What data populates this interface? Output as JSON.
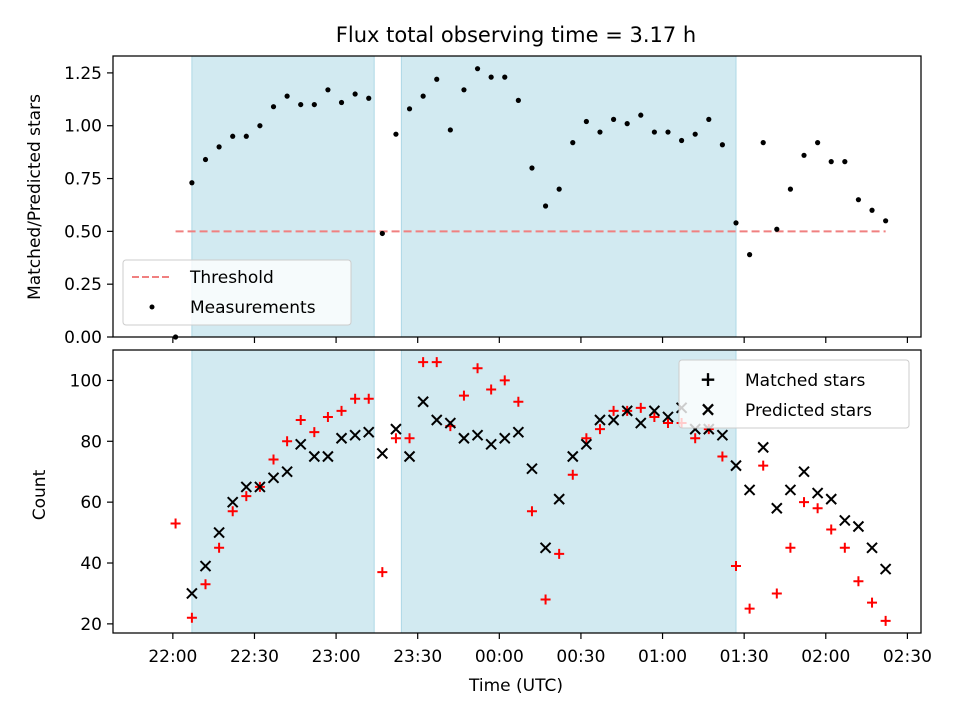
{
  "figure": {
    "title": "Flux total observing time = 3.17 h",
    "xlabel": "Time (UTC)",
    "xticks": [
      "22:00",
      "22:30",
      "23:00",
      "23:30",
      "00:00",
      "00:30",
      "01:00",
      "01:30",
      "02:00",
      "02:30"
    ]
  },
  "colors": {
    "threshold": "#f08080",
    "measurements": "#000000",
    "matched": "#ff0000",
    "predicted": "#000000",
    "shading": "#add8e6"
  },
  "chart_data": [
    {
      "type": "scatter",
      "title": "Flux total observing time = 3.17 h",
      "ylabel": "Matched/Predicted stars",
      "ylim": [
        0,
        1.33
      ],
      "yticks": [
        "0.00",
        "0.25",
        "0.50",
        "0.75",
        "1.00",
        "1.25"
      ],
      "xlim_minutes_since_2200": [
        -22,
        275
      ],
      "shaded_intervals": [
        [
          "22:07",
          "23:14"
        ],
        [
          "23:24",
          "01:27"
        ]
      ],
      "legend": {
        "placement": "lower-left",
        "entries": [
          "Threshold",
          "Measurements"
        ]
      },
      "series": [
        {
          "name": "Threshold",
          "style": "dashed-line",
          "x": [
            "22:01",
            "02:22"
          ],
          "y": [
            0.5,
            0.5
          ]
        },
        {
          "name": "Measurements",
          "style": "dots",
          "x": [
            "22:01",
            "22:07",
            "22:12",
            "22:17",
            "22:22",
            "22:27",
            "22:32",
            "22:37",
            "22:42",
            "22:47",
            "22:52",
            "22:57",
            "23:02",
            "23:07",
            "23:12",
            "23:17",
            "23:22",
            "23:27",
            "23:32",
            "23:37",
            "23:42",
            "23:47",
            "23:52",
            "23:57",
            "00:02",
            "00:07",
            "00:12",
            "00:17",
            "00:22",
            "00:27",
            "00:32",
            "00:37",
            "00:42",
            "00:47",
            "00:52",
            "00:57",
            "01:02",
            "01:07",
            "01:12",
            "01:17",
            "01:22",
            "01:27",
            "01:32",
            "01:37",
            "01:42",
            "01:47",
            "01:52",
            "01:57",
            "02:02",
            "02:07",
            "02:12",
            "02:17",
            "02:22"
          ],
          "y": [
            0.0,
            0.73,
            0.84,
            0.9,
            0.95,
            0.95,
            1.0,
            1.09,
            1.14,
            1.1,
            1.1,
            1.17,
            1.11,
            1.15,
            1.13,
            0.49,
            0.96,
            1.08,
            1.14,
            1.22,
            0.98,
            1.17,
            1.27,
            1.23,
            1.23,
            1.12,
            0.8,
            0.62,
            0.7,
            0.92,
            1.02,
            0.97,
            1.03,
            1.01,
            1.05,
            0.97,
            0.97,
            0.93,
            0.96,
            1.03,
            0.91,
            0.54,
            0.39,
            0.92,
            0.51,
            0.7,
            0.86,
            0.92,
            0.83,
            0.83,
            0.65,
            0.6,
            0.55
          ]
        }
      ]
    },
    {
      "type": "scatter",
      "ylabel": "Count",
      "ylim": [
        17,
        110
      ],
      "yticks": [
        "20",
        "40",
        "60",
        "80",
        "100"
      ],
      "xlim_minutes_since_2200": [
        -22,
        275
      ],
      "shaded_intervals": [
        [
          "22:07",
          "23:14"
        ],
        [
          "23:24",
          "01:27"
        ]
      ],
      "legend": {
        "placement": "upper-right",
        "entries": [
          "Matched stars",
          "Predicted stars"
        ]
      },
      "series": [
        {
          "name": "Matched stars",
          "marker": "+",
          "x": [
            "22:01",
            "22:07",
            "22:12",
            "22:17",
            "22:22",
            "22:27",
            "22:32",
            "22:37",
            "22:42",
            "22:47",
            "22:52",
            "22:57",
            "23:02",
            "23:07",
            "23:12",
            "23:17",
            "23:22",
            "23:27",
            "23:32",
            "23:37",
            "23:42",
            "23:47",
            "23:52",
            "23:57",
            "00:02",
            "00:07",
            "00:12",
            "00:17",
            "00:22",
            "00:27",
            "00:32",
            "00:37",
            "00:42",
            "00:47",
            "00:52",
            "00:57",
            "01:02",
            "01:07",
            "01:12",
            "01:17",
            "01:22",
            "01:27",
            "01:32",
            "01:37",
            "01:42",
            "01:47",
            "01:52",
            "01:57",
            "02:02",
            "02:07",
            "02:12",
            "02:17",
            "02:22"
          ],
          "y": [
            53,
            22,
            33,
            45,
            57,
            62,
            65,
            74,
            80,
            87,
            83,
            88,
            90,
            94,
            94,
            37,
            81,
            81,
            106,
            106,
            85,
            95,
            104,
            97,
            100,
            93,
            57,
            28,
            43,
            69,
            81,
            84,
            90,
            90,
            91,
            88,
            86,
            86,
            81,
            84,
            75,
            39,
            25,
            72,
            30,
            45,
            60,
            58,
            51,
            45,
            34,
            27,
            21
          ]
        },
        {
          "name": "Predicted stars",
          "marker": "x",
          "x": [
            "22:07",
            "22:12",
            "22:17",
            "22:22",
            "22:27",
            "22:32",
            "22:37",
            "22:42",
            "22:47",
            "22:52",
            "22:57",
            "23:02",
            "23:07",
            "23:12",
            "23:17",
            "23:22",
            "23:27",
            "23:32",
            "23:37",
            "23:42",
            "23:47",
            "23:52",
            "23:57",
            "00:02",
            "00:07",
            "00:12",
            "00:17",
            "00:22",
            "00:27",
            "00:32",
            "00:37",
            "00:42",
            "00:47",
            "00:52",
            "00:57",
            "01:02",
            "01:07",
            "01:12",
            "01:17",
            "01:22",
            "01:27",
            "01:32",
            "01:37",
            "01:42",
            "01:47",
            "01:52",
            "01:57",
            "02:02",
            "02:07",
            "02:12",
            "02:17",
            "02:22"
          ],
          "y": [
            30,
            39,
            50,
            60,
            65,
            65,
            68,
            70,
            79,
            75,
            75,
            81,
            82,
            83,
            76,
            84,
            75,
            93,
            87,
            86,
            81,
            82,
            79,
            81,
            83,
            71,
            45,
            61,
            75,
            79,
            87,
            87,
            90,
            86,
            90,
            88,
            91,
            84,
            84,
            82,
            72,
            64,
            78,
            58,
            64,
            70,
            63,
            61,
            54,
            52,
            45,
            38
          ]
        }
      ]
    }
  ]
}
